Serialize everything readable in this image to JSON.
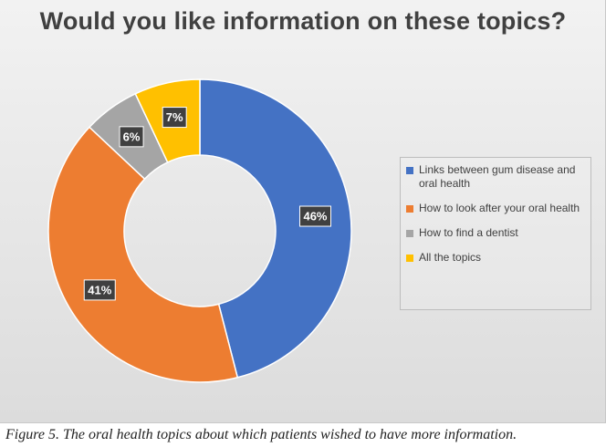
{
  "chart_data": {
    "type": "pie",
    "title": "Would you like information on these topics?",
    "donut": true,
    "legend_position": "right",
    "slices": [
      {
        "label": "Links between gum disease and oral health",
        "value": 46,
        "display": "46%",
        "color": "#4472C4"
      },
      {
        "label": "How to look after your oral health",
        "value": 41,
        "display": "41%",
        "color": "#ED7D31"
      },
      {
        "label": "How to find a dentist",
        "value": 6,
        "display": "6%",
        "color": "#A5A5A5"
      },
      {
        "label": "All the topics",
        "value": 7,
        "display": "7%",
        "color": "#FFC000"
      }
    ]
  },
  "caption": "Figure 5. The oral health topics about which patients wished to have more information.",
  "colors": {
    "label_box": "#404040",
    "background": "#e8e8e8"
  }
}
